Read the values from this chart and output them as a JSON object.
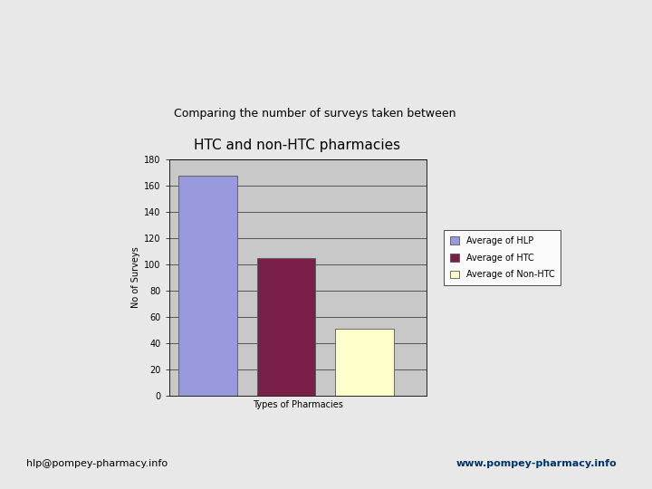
{
  "title_line1": "Comparing the number of surveys taken between",
  "title_line2": "HTC and non-HTC pharmacies",
  "categories": [
    "HLP",
    "HTC",
    "Non-HTC"
  ],
  "values": [
    168,
    105,
    51
  ],
  "bar_colors": [
    "#9999dd",
    "#7a2048",
    "#ffffcc"
  ],
  "bar_edgecolors": [
    "#555555",
    "#555555",
    "#555555"
  ],
  "xlabel": "Types of Pharmacies",
  "ylabel": "No of Surveys",
  "ylim": [
    0,
    180
  ],
  "yticks": [
    0,
    20,
    40,
    60,
    80,
    100,
    120,
    140,
    160,
    180
  ],
  "legend_labels": [
    "Average of HLP",
    "Average of HTC",
    "Average of Non-HTC"
  ],
  "legend_colors": [
    "#9999dd",
    "#7a2048",
    "#ffffcc"
  ],
  "plot_bg_color": "#c8c8c8",
  "slide_bg_color": "#ffffff",
  "page_bg_color": "#e8e8e8",
  "footer_bg_color": "#b8d4e8",
  "title_fontsize": 9,
  "subtitle_fontsize": 11,
  "axis_label_fontsize": 7,
  "tick_fontsize": 7,
  "legend_fontsize": 7,
  "footer_text_left": "hlp@pompey-pharmacy.info",
  "footer_text_right": "www.pompey-pharmacy.info"
}
